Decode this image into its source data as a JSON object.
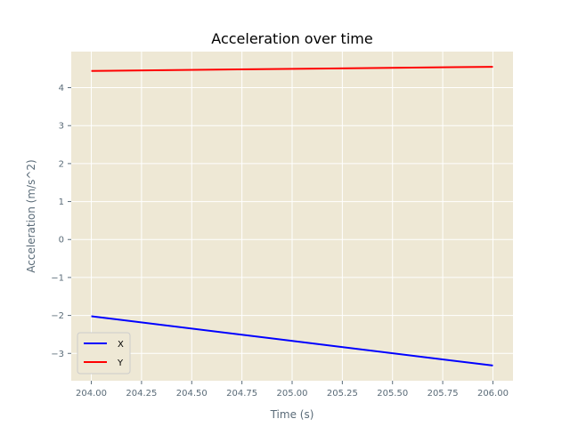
{
  "chart_data": {
    "type": "line",
    "title": "Acceleration over time",
    "xlabel": "Time (s)",
    "ylabel": "Acceleration (m/s^2)",
    "xlim": [
      203.9,
      206.1
    ],
    "ylim": [
      -3.72,
      4.95
    ],
    "xticks": [
      204.0,
      204.25,
      204.5,
      204.75,
      205.0,
      205.25,
      205.5,
      205.75,
      206.0
    ],
    "xtick_labels": [
      "204.00",
      "204.25",
      "204.50",
      "204.75",
      "205.00",
      "205.25",
      "205.50",
      "205.75",
      "206.00"
    ],
    "yticks": [
      4,
      3,
      2,
      1,
      0,
      -1,
      -2,
      -3
    ],
    "ytick_labels": [
      "4",
      "3",
      "2",
      "1",
      "0",
      "−1",
      "−2",
      "−3"
    ],
    "grid": true,
    "legend_position": "lower-left",
    "series": [
      {
        "name": "X",
        "color": "#0000ff",
        "x": [
          204.0,
          206.0
        ],
        "y": [
          -2.02,
          -3.32
        ]
      },
      {
        "name": "Y",
        "color": "#ff0000",
        "x": [
          204.0,
          206.0
        ],
        "y": [
          4.44,
          4.55
        ]
      }
    ],
    "colors": {
      "plot_background": "#eee8d5",
      "grid": "#ffffff",
      "axes_edge": "#ffffff"
    }
  }
}
